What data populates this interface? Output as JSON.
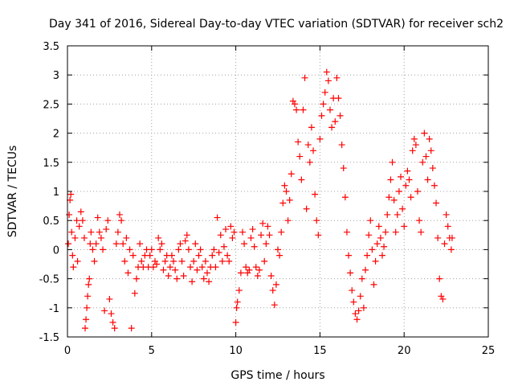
{
  "chart_data": {
    "type": "scatter",
    "title": "Day 341 of 2016, Sidereal Day-to-day VTEC variation (SDTVAR) for receiver sch2",
    "xlabel": "GPS time / hours",
    "ylabel": "SDTVAR / TECUs",
    "xlim": [
      0,
      25
    ],
    "ylim": [
      -1.5,
      3.5
    ],
    "xticks": [
      0,
      5,
      10,
      15,
      20,
      25
    ],
    "xtick_labels": [
      "0",
      "5",
      "10",
      "15",
      "20",
      "25"
    ],
    "yticks": [
      -1.5,
      -1,
      -0.5,
      0,
      0.5,
      1,
      1.5,
      2,
      2.5,
      3,
      3.5
    ],
    "ytick_labels": [
      "-1.5",
      "-1",
      "-0.5",
      "0",
      "0.5",
      "1",
      "1.5",
      "2",
      "2.5",
      "3",
      "3.5"
    ],
    "grid": true,
    "marker": "+",
    "color": "#ff0000",
    "series": [
      {
        "name": "SDTVAR",
        "points": [
          [
            0.05,
            0.1
          ],
          [
            0.1,
            0.6
          ],
          [
            0.15,
            0.85
          ],
          [
            0.2,
            0.95
          ],
          [
            0.25,
            0.3
          ],
          [
            0.3,
            -0.1
          ],
          [
            0.35,
            -0.3
          ],
          [
            0.45,
            0.2
          ],
          [
            0.55,
            0.5
          ],
          [
            0.6,
            -0.2
          ],
          [
            0.7,
            0.4
          ],
          [
            0.8,
            0.65
          ],
          [
            0.9,
            0.5
          ],
          [
            1.0,
            0.2
          ],
          [
            1.05,
            -1.35
          ],
          [
            1.1,
            -1.2
          ],
          [
            1.15,
            -1.0
          ],
          [
            1.2,
            -0.8
          ],
          [
            1.25,
            -0.6
          ],
          [
            1.3,
            -0.5
          ],
          [
            1.35,
            0.1
          ],
          [
            1.4,
            0.3
          ],
          [
            1.5,
            0.0
          ],
          [
            1.6,
            -0.2
          ],
          [
            1.7,
            0.1
          ],
          [
            1.8,
            0.55
          ],
          [
            1.9,
            0.3
          ],
          [
            2.0,
            0.2
          ],
          [
            2.1,
            0.0
          ],
          [
            2.2,
            -1.05
          ],
          [
            2.3,
            0.35
          ],
          [
            2.4,
            0.5
          ],
          [
            2.5,
            -0.85
          ],
          [
            2.6,
            -1.1
          ],
          [
            2.7,
            -1.25
          ],
          [
            2.8,
            -1.35
          ],
          [
            2.9,
            0.1
          ],
          [
            3.0,
            0.3
          ],
          [
            3.1,
            0.6
          ],
          [
            3.2,
            0.5
          ],
          [
            3.3,
            0.1
          ],
          [
            3.4,
            -0.2
          ],
          [
            3.5,
            0.2
          ],
          [
            3.6,
            -0.4
          ],
          [
            3.7,
            0.0
          ],
          [
            3.8,
            -1.35
          ],
          [
            3.9,
            -0.1
          ],
          [
            4.0,
            -0.75
          ],
          [
            4.1,
            -0.5
          ],
          [
            4.2,
            -0.3
          ],
          [
            4.3,
            0.1
          ],
          [
            4.4,
            -0.2
          ],
          [
            4.5,
            -0.3
          ],
          [
            4.6,
            -0.1
          ],
          [
            4.7,
            0.0
          ],
          [
            4.8,
            -0.3
          ],
          [
            4.9,
            -0.1
          ],
          [
            5.0,
            0.0
          ],
          [
            5.1,
            -0.3
          ],
          [
            5.2,
            -0.2
          ],
          [
            5.3,
            -0.25
          ],
          [
            5.4,
            0.2
          ],
          [
            5.5,
            0.0
          ],
          [
            5.6,
            0.1
          ],
          [
            5.7,
            -0.35
          ],
          [
            5.8,
            -0.2
          ],
          [
            5.9,
            -0.1
          ],
          [
            6.0,
            -0.45
          ],
          [
            6.1,
            -0.3
          ],
          [
            6.2,
            -0.1
          ],
          [
            6.3,
            -0.2
          ],
          [
            6.4,
            -0.35
          ],
          [
            6.5,
            -0.5
          ],
          [
            6.6,
            0.0
          ],
          [
            6.7,
            0.1
          ],
          [
            6.8,
            -0.2
          ],
          [
            6.9,
            -0.45
          ],
          [
            7.0,
            0.15
          ],
          [
            7.1,
            0.25
          ],
          [
            7.2,
            0.0
          ],
          [
            7.3,
            -0.3
          ],
          [
            7.4,
            -0.55
          ],
          [
            7.5,
            -0.2
          ],
          [
            7.6,
            0.1
          ],
          [
            7.7,
            -0.35
          ],
          [
            7.8,
            -0.1
          ],
          [
            7.9,
            0.0
          ],
          [
            8.0,
            -0.3
          ],
          [
            8.1,
            -0.5
          ],
          [
            8.2,
            -0.2
          ],
          [
            8.3,
            -0.4
          ],
          [
            8.4,
            -0.55
          ],
          [
            8.5,
            -0.3
          ],
          [
            8.6,
            -0.1
          ],
          [
            8.7,
            0.0
          ],
          [
            8.8,
            -0.3
          ],
          [
            8.9,
            0.55
          ],
          [
            9.0,
            -0.05
          ],
          [
            9.1,
            0.25
          ],
          [
            9.2,
            -0.2
          ],
          [
            9.3,
            0.05
          ],
          [
            9.4,
            0.35
          ],
          [
            9.5,
            -0.1
          ],
          [
            9.6,
            -0.2
          ],
          [
            9.7,
            0.4
          ],
          [
            9.8,
            0.2
          ],
          [
            9.9,
            0.3
          ],
          [
            10.0,
            -1.25
          ],
          [
            10.05,
            -1.0
          ],
          [
            10.1,
            -0.9
          ],
          [
            10.2,
            -0.7
          ],
          [
            10.3,
            -0.4
          ],
          [
            10.4,
            0.3
          ],
          [
            10.5,
            0.1
          ],
          [
            10.6,
            -0.3
          ],
          [
            10.7,
            -0.4
          ],
          [
            10.8,
            -0.35
          ],
          [
            10.9,
            0.2
          ],
          [
            11.0,
            0.35
          ],
          [
            11.1,
            0.05
          ],
          [
            11.2,
            -0.3
          ],
          [
            11.3,
            -0.45
          ],
          [
            11.4,
            -0.35
          ],
          [
            11.5,
            0.25
          ],
          [
            11.6,
            0.45
          ],
          [
            11.7,
            -0.2
          ],
          [
            11.8,
            0.1
          ],
          [
            11.9,
            0.4
          ],
          [
            12.0,
            0.25
          ],
          [
            12.1,
            -0.45
          ],
          [
            12.2,
            -0.7
          ],
          [
            12.3,
            -0.95
          ],
          [
            12.4,
            -0.6
          ],
          [
            12.5,
            0.0
          ],
          [
            12.6,
            -0.1
          ],
          [
            12.7,
            0.3
          ],
          [
            12.8,
            0.8
          ],
          [
            12.9,
            1.1
          ],
          [
            13.0,
            1.0
          ],
          [
            13.1,
            0.5
          ],
          [
            13.2,
            0.85
          ],
          [
            13.3,
            1.3
          ],
          [
            13.4,
            2.55
          ],
          [
            13.5,
            2.5
          ],
          [
            13.6,
            2.4
          ],
          [
            13.7,
            1.85
          ],
          [
            13.8,
            1.6
          ],
          [
            13.9,
            1.2
          ],
          [
            14.0,
            2.4
          ],
          [
            14.1,
            2.95
          ],
          [
            14.2,
            0.7
          ],
          [
            14.3,
            1.8
          ],
          [
            14.4,
            1.5
          ],
          [
            14.5,
            2.1
          ],
          [
            14.6,
            1.7
          ],
          [
            14.7,
            0.95
          ],
          [
            14.8,
            0.5
          ],
          [
            14.9,
            0.25
          ],
          [
            15.0,
            1.9
          ],
          [
            15.1,
            2.3
          ],
          [
            15.2,
            2.5
          ],
          [
            15.3,
            2.7
          ],
          [
            15.4,
            3.05
          ],
          [
            15.5,
            2.9
          ],
          [
            15.6,
            2.4
          ],
          [
            15.7,
            2.1
          ],
          [
            15.8,
            2.6
          ],
          [
            15.9,
            2.2
          ],
          [
            16.0,
            2.95
          ],
          [
            16.1,
            2.6
          ],
          [
            16.2,
            2.3
          ],
          [
            16.3,
            1.8
          ],
          [
            16.4,
            1.4
          ],
          [
            16.5,
            0.9
          ],
          [
            16.6,
            0.3
          ],
          [
            16.7,
            -0.1
          ],
          [
            16.8,
            -0.4
          ],
          [
            16.9,
            -0.7
          ],
          [
            17.0,
            -0.9
          ],
          [
            17.1,
            -1.1
          ],
          [
            17.2,
            -1.2
          ],
          [
            17.3,
            -1.05
          ],
          [
            17.4,
            -0.8
          ],
          [
            17.5,
            -0.5
          ],
          [
            17.6,
            -1.0
          ],
          [
            17.7,
            -0.35
          ],
          [
            17.8,
            -0.1
          ],
          [
            17.9,
            0.25
          ],
          [
            18.0,
            0.5
          ],
          [
            18.1,
            0.0
          ],
          [
            18.2,
            -0.6
          ],
          [
            18.3,
            -0.2
          ],
          [
            18.4,
            0.1
          ],
          [
            18.5,
            0.4
          ],
          [
            18.6,
            0.2
          ],
          [
            18.7,
            -0.1
          ],
          [
            18.8,
            0.05
          ],
          [
            18.9,
            0.3
          ],
          [
            19.0,
            0.6
          ],
          [
            19.1,
            0.9
          ],
          [
            19.2,
            1.2
          ],
          [
            19.3,
            1.5
          ],
          [
            19.4,
            0.85
          ],
          [
            19.5,
            0.3
          ],
          [
            19.6,
            0.6
          ],
          [
            19.7,
            1.0
          ],
          [
            19.8,
            1.25
          ],
          [
            19.9,
            0.7
          ],
          [
            20.0,
            0.4
          ],
          [
            20.1,
            1.1
          ],
          [
            20.2,
            1.35
          ],
          [
            20.3,
            1.2
          ],
          [
            20.4,
            0.9
          ],
          [
            20.5,
            1.7
          ],
          [
            20.6,
            1.9
          ],
          [
            20.7,
            1.8
          ],
          [
            20.8,
            1.0
          ],
          [
            20.9,
            0.5
          ],
          [
            21.0,
            0.3
          ],
          [
            21.1,
            1.5
          ],
          [
            21.2,
            2.0
          ],
          [
            21.3,
            1.6
          ],
          [
            21.4,
            1.2
          ],
          [
            21.5,
            1.9
          ],
          [
            21.6,
            1.7
          ],
          [
            21.7,
            1.4
          ],
          [
            21.8,
            1.1
          ],
          [
            21.9,
            0.8
          ],
          [
            22.0,
            0.2
          ],
          [
            22.1,
            -0.5
          ],
          [
            22.2,
            -0.8
          ],
          [
            22.3,
            -0.85
          ],
          [
            22.4,
            0.1
          ],
          [
            22.5,
            0.6
          ],
          [
            22.6,
            0.4
          ],
          [
            22.7,
            0.2
          ],
          [
            22.8,
            0.0
          ],
          [
            22.85,
            0.2
          ]
        ]
      }
    ]
  }
}
